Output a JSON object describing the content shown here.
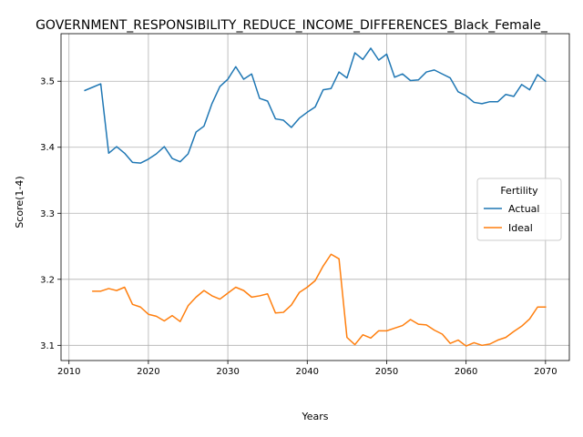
{
  "chart_data": {
    "type": "line",
    "title": "GOVERNMENT_RESPONSIBILITY_REDUCE_INCOME_DIFFERENCES_Black_Female_",
    "xlabel": "Years",
    "ylabel": "Score(1-4)",
    "xlim": [
      2009,
      2073
    ],
    "ylim": [
      3.077,
      3.572
    ],
    "xticks": [
      2010,
      2020,
      2030,
      2040,
      2050,
      2060,
      2070
    ],
    "yticks": [
      3.1,
      3.2,
      3.3,
      3.4,
      3.5
    ],
    "ytick_labels": [
      "3.1",
      "3.2",
      "3.3",
      "3.4",
      "3.5"
    ],
    "grid": true,
    "legend": {
      "title": "Fertility",
      "placement": "center-right"
    },
    "series": [
      {
        "name": "Actual",
        "color": "#1f77b4",
        "x": [
          2012,
          2013,
          2014,
          2015,
          2016,
          2017,
          2018,
          2019,
          2020,
          2021,
          2022,
          2023,
          2024,
          2025,
          2026,
          2027,
          2028,
          2029,
          2030,
          2031,
          2032,
          2033,
          2034,
          2035,
          2036,
          2037,
          2038,
          2039,
          2040,
          2041,
          2042,
          2043,
          2044,
          2045,
          2046,
          2047,
          2048,
          2049,
          2050,
          2051,
          2052,
          2053,
          2054,
          2055,
          2056,
          2057,
          2058,
          2059,
          2060,
          2061,
          2062,
          2063,
          2064,
          2065,
          2066,
          2067,
          2068,
          2069,
          2070
        ],
        "values": [
          3.486,
          3.491,
          3.496,
          3.391,
          3.401,
          3.391,
          3.377,
          3.376,
          3.382,
          3.39,
          3.401,
          3.383,
          3.378,
          3.39,
          3.423,
          3.432,
          3.466,
          3.492,
          3.503,
          3.522,
          3.503,
          3.511,
          3.474,
          3.47,
          3.443,
          3.441,
          3.43,
          3.444,
          3.453,
          3.461,
          3.487,
          3.489,
          3.514,
          3.505,
          3.543,
          3.533,
          3.55,
          3.532,
          3.541,
          3.506,
          3.511,
          3.501,
          3.502,
          3.514,
          3.517,
          3.511,
          3.505,
          3.484,
          3.478,
          3.468,
          3.466,
          3.469,
          3.469,
          3.48,
          3.477,
          3.495,
          3.487,
          3.51,
          3.5
        ]
      },
      {
        "name": "Ideal",
        "color": "#ff7f0e",
        "x": [
          2013,
          2014,
          2015,
          2016,
          2017,
          2018,
          2019,
          2020,
          2021,
          2022,
          2023,
          2024,
          2025,
          2026,
          2027,
          2028,
          2029,
          2030,
          2031,
          2032,
          2033,
          2034,
          2035,
          2036,
          2037,
          2038,
          2039,
          2040,
          2041,
          2042,
          2043,
          2044,
          2045,
          2046,
          2047,
          2048,
          2049,
          2050,
          2051,
          2052,
          2053,
          2054,
          2055,
          2056,
          2057,
          2058,
          2059,
          2060,
          2061,
          2062,
          2063,
          2064,
          2065,
          2066,
          2067,
          2068,
          2069,
          2070
        ],
        "values": [
          3.182,
          3.182,
          3.186,
          3.183,
          3.188,
          3.162,
          3.158,
          3.147,
          3.144,
          3.137,
          3.145,
          3.136,
          3.16,
          3.173,
          3.183,
          3.175,
          3.17,
          3.179,
          3.188,
          3.183,
          3.173,
          3.175,
          3.178,
          3.149,
          3.15,
          3.161,
          3.18,
          3.188,
          3.198,
          3.22,
          3.238,
          3.231,
          3.112,
          3.101,
          3.116,
          3.111,
          3.122,
          3.122,
          3.126,
          3.13,
          3.139,
          3.132,
          3.131,
          3.123,
          3.117,
          3.103,
          3.108,
          3.099,
          3.104,
          3.1,
          3.102,
          3.108,
          3.112,
          3.121,
          3.129,
          3.14,
          3.158,
          3.158
        ]
      }
    ]
  }
}
